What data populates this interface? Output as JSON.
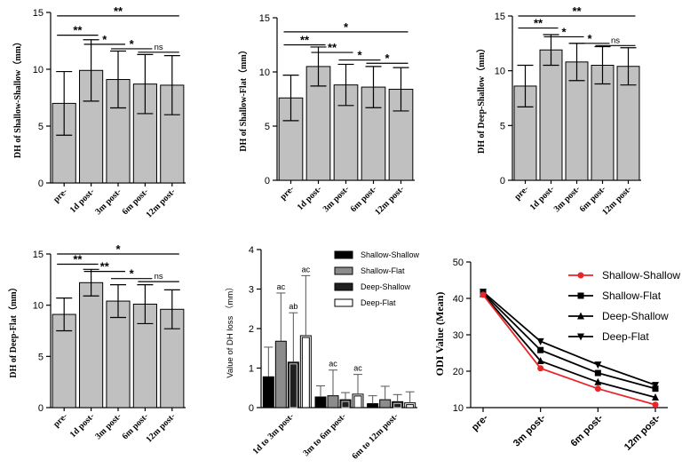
{
  "colors": {
    "bar": "#c0c0c0",
    "red": "#e8262a",
    "black": "#000000",
    "dark": "#202020",
    "mid": "#8c8c8c",
    "light": "#c8c8c8",
    "white": "#ffffff"
  },
  "chart_data": [
    {
      "type": "bar",
      "ylabel": "DH of Shallow-Shallow（mm）",
      "categories": [
        "pre-",
        "1d post-",
        "3m post-",
        "6m post-",
        "12m post-"
      ],
      "values": [
        7.0,
        9.9,
        9.1,
        8.7,
        8.6
      ],
      "errors": [
        2.8,
        2.7,
        2.5,
        2.6,
        2.6
      ],
      "ylim": [
        0,
        15
      ],
      "yticks": [
        0,
        5,
        10,
        15
      ],
      "sig": [
        {
          "from": 0,
          "to": 4,
          "label": "**",
          "y": 14.7
        },
        {
          "from": 0,
          "to": 1,
          "label": "**",
          "y": 13.0
        },
        {
          "from": 1,
          "to": 2,
          "label": "*",
          "y": 12.2
        },
        {
          "from": 2,
          "to": 3,
          "label": "*",
          "y": 11.8
        },
        {
          "from": 3,
          "to": 4,
          "label": "ns",
          "y": 11.5
        }
      ]
    },
    {
      "type": "bar",
      "ylabel": "DH of Shallow-Flat（mm）",
      "categories": [
        "pre-",
        "1d post-",
        "3m post-",
        "6m post-",
        "12m post-"
      ],
      "values": [
        7.6,
        10.5,
        8.8,
        8.6,
        8.4
      ],
      "errors": [
        2.1,
        1.8,
        1.9,
        1.9,
        2.0
      ],
      "ylim": [
        0,
        15
      ],
      "yticks": [
        0,
        5,
        10,
        15
      ],
      "sig": [
        {
          "from": 0,
          "to": 4,
          "label": "*",
          "y": 13.7
        },
        {
          "from": 0,
          "to": 1,
          "label": "**",
          "y": 12.5
        },
        {
          "from": 1,
          "to": 2,
          "label": "**",
          "y": 11.8
        },
        {
          "from": 2,
          "to": 3,
          "label": "*",
          "y": 11.1
        },
        {
          "from": 3,
          "to": 4,
          "label": "*",
          "y": 10.8
        }
      ]
    },
    {
      "type": "bar",
      "ylabel": "DH of Deep-Shallow（mm）",
      "categories": [
        "pre-",
        "1d post-",
        "3m post-",
        "6m post-",
        "12m post-"
      ],
      "values": [
        8.6,
        11.9,
        10.8,
        10.5,
        10.4
      ],
      "errors": [
        1.9,
        1.4,
        1.7,
        1.7,
        1.7
      ],
      "ylim": [
        0,
        15
      ],
      "yticks": [
        0,
        5,
        10,
        15
      ],
      "sig": [
        {
          "from": 0,
          "to": 4,
          "label": "**",
          "y": 15.0
        },
        {
          "from": 0,
          "to": 1,
          "label": "**",
          "y": 13.9
        },
        {
          "from": 1,
          "to": 2,
          "label": "*",
          "y": 13.1
        },
        {
          "from": 2,
          "to": 3,
          "label": "*",
          "y": 12.5
        },
        {
          "from": 3,
          "to": 4,
          "label": "ns",
          "y": 12.3
        }
      ]
    },
    {
      "type": "bar",
      "ylabel": "DH of Deep-Flat（mm）",
      "categories": [
        "pre-",
        "1d post-",
        "3m post-",
        "6m post-",
        "12m post-"
      ],
      "values": [
        9.1,
        12.2,
        10.4,
        10.1,
        9.6
      ],
      "errors": [
        1.6,
        1.3,
        1.6,
        1.9,
        1.9
      ],
      "ylim": [
        0,
        15
      ],
      "yticks": [
        0,
        5,
        10,
        15
      ],
      "sig": [
        {
          "from": 0,
          "to": 4,
          "label": "*",
          "y": 15.0
        },
        {
          "from": 0,
          "to": 1,
          "label": "**",
          "y": 14.0
        },
        {
          "from": 1,
          "to": 2,
          "label": "**",
          "y": 13.3
        },
        {
          "from": 2,
          "to": 3,
          "label": "*",
          "y": 12.6
        },
        {
          "from": 3,
          "to": 4,
          "label": "ns",
          "y": 12.3
        }
      ]
    },
    {
      "type": "bar",
      "ylabel": "Value of DH loss （mm）",
      "categories": [
        "1d  to 3m post-",
        "3m to 6m post-",
        "6m to 12m post-"
      ],
      "ylim": [
        0,
        4
      ],
      "yticks": [
        0,
        1,
        2,
        3,
        4
      ],
      "series": [
        {
          "name": "Shallow-Shallow",
          "values": [
            0.78,
            0.27,
            0.1
          ],
          "errors": [
            0.75,
            0.28,
            0.2
          ],
          "annotations": [
            "",
            "",
            ""
          ]
        },
        {
          "name": "Shallow-Flat",
          "values": [
            1.68,
            0.3,
            0.2
          ],
          "errors": [
            1.22,
            0.65,
            0.34
          ],
          "annotations": [
            "ac",
            "ac",
            ""
          ]
        },
        {
          "name": "Deep-Shallow",
          "values": [
            1.15,
            0.2,
            0.15
          ],
          "errors": [
            1.25,
            0.18,
            0.18
          ],
          "annotations": [
            "ab",
            "",
            ""
          ]
        },
        {
          "name": "Deep-Flat",
          "values": [
            1.82,
            0.34,
            0.12
          ],
          "errors": [
            1.52,
            0.5,
            0.28
          ],
          "annotations": [
            "ac",
            "ac",
            ""
          ]
        }
      ]
    },
    {
      "type": "line",
      "ylabel": "ODI Value (Mean)",
      "categories": [
        "pre-",
        "3m post-",
        "6m post-",
        "12m post-"
      ],
      "ylim": [
        10,
        50
      ],
      "yticks": [
        10,
        20,
        30,
        40,
        50
      ],
      "series": [
        {
          "name": "Shallow-Shallow",
          "values": [
            41.0,
            20.8,
            15.2,
            10.8
          ],
          "marker": "circle",
          "color": "#e8262a"
        },
        {
          "name": "Shallow-Flat",
          "values": [
            41.5,
            25.8,
            19.5,
            15.2
          ],
          "marker": "square",
          "color": "#000000"
        },
        {
          "name": "Deep-Shallow",
          "values": [
            41.2,
            22.8,
            17.0,
            12.8
          ],
          "marker": "triangle",
          "color": "#000000"
        },
        {
          "name": "Deep-Flat",
          "values": [
            41.8,
            28.2,
            21.8,
            16.2
          ],
          "marker": "triangle-down",
          "color": "#000000"
        }
      ]
    }
  ]
}
